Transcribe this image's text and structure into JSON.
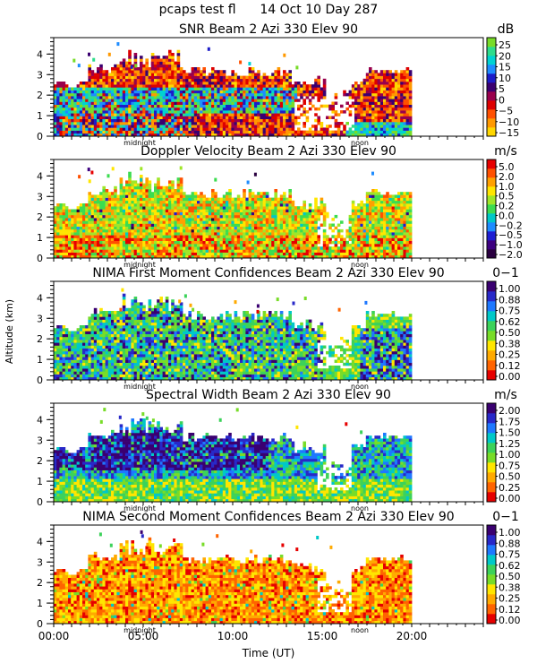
{
  "header": {
    "title": "pcaps test fl      14 Oct 10 Day 287"
  },
  "shared": {
    "ylabel": "Altitude (km)",
    "xlabel": "Time (UT)",
    "x_ticks": [
      0,
      5,
      10,
      15,
      20
    ],
    "x_tick_labels": [
      "00:00",
      "05:00",
      "10:00",
      "15:00",
      "20:00"
    ],
    "x_range_hours": [
      0,
      24
    ],
    "y_range_km": [
      0,
      4.8
    ],
    "y_ticks": [
      0,
      1,
      2,
      3,
      4
    ],
    "midnight_label": "midnight",
    "noon_label": "noon",
    "midnight_hour": 4.8,
    "noon_hour": 17.1
  },
  "chart_data": [
    {
      "type": "heatmap",
      "title": "SNR Beam 2 Azi 330 Elev 90",
      "unit": "dB",
      "colorbar_labels": [
        "25",
        "20",
        "15",
        "10",
        "5",
        "0",
        "−5",
        "−10",
        "−15"
      ],
      "colorbar_colors": [
        "#ffd700",
        "#ff9900",
        "#ff5000",
        "#dd0000",
        "#99004d",
        "#3a0070",
        "#1c1cc8",
        "#1e8cff",
        "#00d2d2",
        "#2ddc8c",
        "#78dc28"
      ]
    },
    {
      "type": "heatmap",
      "title": "Doppler Velocity Beam 2 Azi 330 Elev 90",
      "unit": "m/s",
      "colorbar_labels": [
        "5.0",
        "2.0",
        "1.0",
        "0.5",
        "0.2",
        "0.0",
        "−0.2",
        "−0.5",
        "−1.0",
        "−2.0"
      ],
      "colorbar_colors": [
        "#2a0040",
        "#3d0080",
        "#1e1ed2",
        "#1e8cff",
        "#00c8c8",
        "#3cdc50",
        "#a0e628",
        "#ffe600",
        "#ffa000",
        "#ff5000",
        "#e60000"
      ]
    },
    {
      "type": "heatmap",
      "title": "NIMA First Moment Confidences Beam 2 Azi 330 Elev 90",
      "unit": "0−1",
      "colorbar_labels": [
        "1.00",
        "0.88",
        "0.75",
        "0.62",
        "0.50",
        "0.38",
        "0.25",
        "0.12",
        "0.00"
      ],
      "colorbar_colors": [
        "#e60000",
        "#ff6400",
        "#ffaa00",
        "#ffe600",
        "#78dc28",
        "#3cd25a",
        "#00c8c8",
        "#1e78ff",
        "#2828c8",
        "#3a0070"
      ]
    },
    {
      "type": "heatmap",
      "title": "Spectral Width Beam 2 Azi 330 Elev 90",
      "unit": "m/s",
      "colorbar_labels": [
        "2.00",
        "1.75",
        "1.50",
        "1.25",
        "1.00",
        "0.75",
        "0.50",
        "0.25",
        "0.00"
      ],
      "colorbar_colors": [
        "#e60000",
        "#ff6400",
        "#ffaa00",
        "#ffe600",
        "#78dc28",
        "#3cd25a",
        "#00c8c8",
        "#1e78ff",
        "#2828c8",
        "#3a0070"
      ]
    },
    {
      "type": "heatmap",
      "title": "NIMA Second Moment Confidences Beam 2 Azi 330 Elev 90",
      "unit": "0−1",
      "colorbar_labels": [
        "1.00",
        "0.88",
        "0.75",
        "0.62",
        "0.50",
        "0.38",
        "0.25",
        "0.12",
        "0.00"
      ],
      "colorbar_colors": [
        "#e60000",
        "#ff6400",
        "#ffaa00",
        "#ffe600",
        "#78dc28",
        "#3cd25a",
        "#00c8c8",
        "#1e78ff",
        "#2828c8",
        "#3a0070"
      ]
    }
  ]
}
